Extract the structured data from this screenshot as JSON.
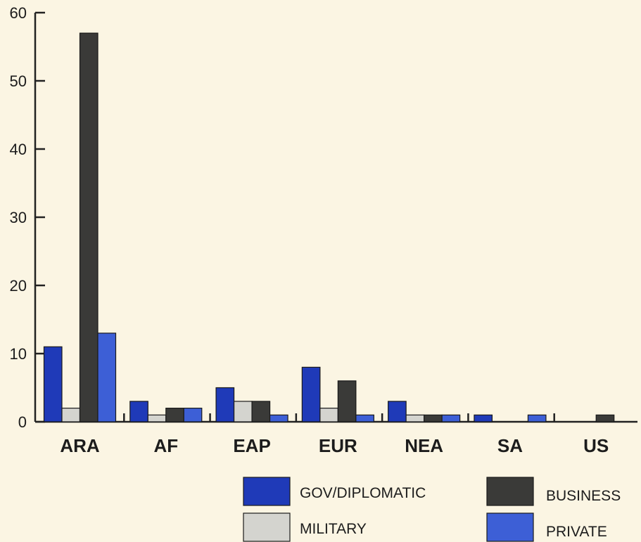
{
  "chart_data": {
    "type": "bar",
    "categories": [
      "ARA",
      "AF",
      "EAP",
      "EUR",
      "NEA",
      "SA",
      "US"
    ],
    "series": [
      {
        "name": "GOV/DIPLOMATIC",
        "color": "#1f3ab8",
        "values": [
          11,
          3,
          5,
          8,
          3,
          1,
          0
        ]
      },
      {
        "name": "MILITARY",
        "color": "#d4d4cf",
        "values": [
          2,
          1,
          3,
          2,
          1,
          0,
          0
        ]
      },
      {
        "name": "BUSINESS",
        "color": "#3a3a38",
        "values": [
          57,
          2,
          3,
          6,
          1,
          0,
          1
        ]
      },
      {
        "name": "PRIVATE",
        "color": "#3d5fd6",
        "values": [
          13,
          2,
          1,
          1,
          1,
          1,
          0
        ]
      }
    ],
    "ylim": [
      0,
      60
    ],
    "yticks": [
      "0",
      "10",
      "20",
      "30",
      "40",
      "50",
      "60"
    ],
    "legend_position": "bottom-right",
    "grid": false,
    "title": "",
    "xlabel": "",
    "ylabel": ""
  }
}
